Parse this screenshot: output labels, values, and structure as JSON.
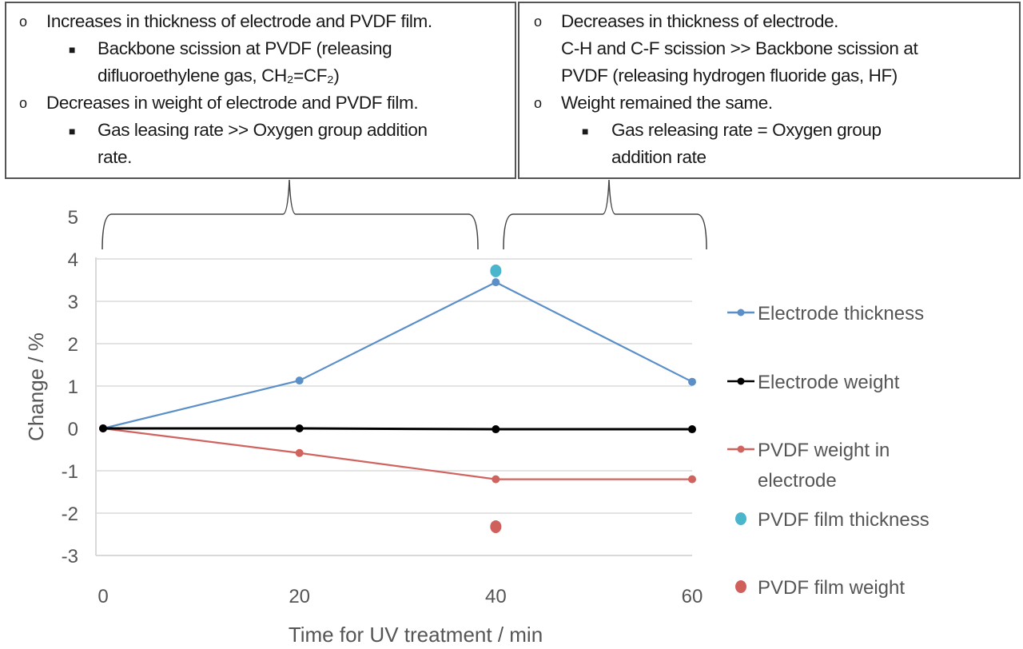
{
  "annotations": {
    "left_box": {
      "items": [
        {
          "level": 1,
          "text": "Increases in thickness of electrode and PVDF film."
        },
        {
          "level": 2,
          "text": "Backbone scission at PVDF (releasing",
          "cont": "difluoroethylene gas, CH₂=CF₂)"
        },
        {
          "level": 1,
          "text": "Decreases in weight of electrode and PVDF film."
        },
        {
          "level": 2,
          "text": "Gas leasing rate >> Oxygen group addition",
          "cont": "rate."
        }
      ]
    },
    "right_box": {
      "items": [
        {
          "level": 1,
          "text": "Decreases in thickness of electrode.",
          "cont": "C-H and C-F scission >> Backbone scission at",
          "cont2": "PVDF (releasing hydrogen fluoride gas, HF)"
        },
        {
          "level": 1,
          "text": "Weight remained the same."
        },
        {
          "level": 2,
          "text": "Gas releasing rate  = Oxygen group",
          "cont": "addition rate"
        }
      ]
    }
  },
  "chart_data": {
    "type": "line",
    "title": "",
    "xlabel": "Time for UV treatment / min",
    "ylabel": "Change / %",
    "x": [
      0,
      20,
      40,
      60
    ],
    "xticks": [
      "0",
      "20",
      "40",
      "60"
    ],
    "yticks": [
      "5",
      "4",
      "3",
      "2",
      "1",
      "0",
      "-1",
      "-2",
      "-3"
    ],
    "xlim": [
      0,
      60
    ],
    "ylim": [
      -3,
      5
    ],
    "grid": true,
    "legend": "right",
    "series": [
      {
        "name": "Electrode thickness",
        "color": "#5b8fc7",
        "x": [
          0,
          20,
          40,
          60
        ],
        "values": [
          0,
          1.13,
          3.45,
          1.1
        ],
        "style": "line"
      },
      {
        "name": "Electrode weight",
        "color": "#000000",
        "x": [
          0,
          20,
          40,
          60
        ],
        "values": [
          0,
          0.0,
          -0.02,
          -0.02
        ],
        "style": "line"
      },
      {
        "name": "PVDF weight in electrode",
        "name_lines": [
          "PVDF weight in",
          "electrode"
        ],
        "color": "#d0635e",
        "x": [
          0,
          20,
          40,
          60
        ],
        "values": [
          0,
          -0.58,
          -1.2,
          -1.2
        ],
        "style": "line"
      },
      {
        "name": "PVDF film thickness",
        "color": "#4bb5cc",
        "x": [
          40
        ],
        "values": [
          3.72
        ],
        "style": "marker"
      },
      {
        "name": "PVDF film weight",
        "color": "#d0605c",
        "x": [
          40
        ],
        "values": [
          -2.32
        ],
        "style": "marker"
      }
    ]
  }
}
